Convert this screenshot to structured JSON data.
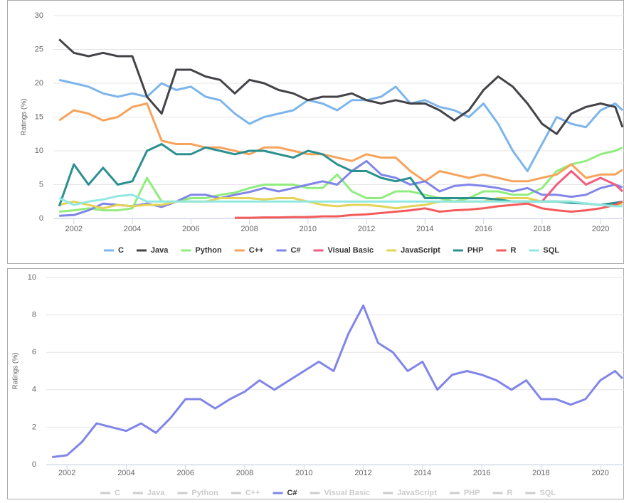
{
  "chart_data": [
    {
      "type": "line",
      "y_label": "Ratings (%)",
      "x": [
        2001.5,
        2002,
        2002.5,
        2003,
        2003.5,
        2004,
        2004.5,
        2005,
        2005.5,
        2006,
        2006.5,
        2007,
        2007.5,
        2008,
        2008.5,
        2009,
        2009.5,
        2010,
        2010.5,
        2011,
        2011.5,
        2012,
        2012.5,
        2013,
        2013.5,
        2014,
        2014.5,
        2015,
        2015.5,
        2016,
        2016.5,
        2017,
        2017.5,
        2018,
        2018.5,
        2019,
        2019.5,
        2020,
        2020.5,
        2020.75
      ],
      "xlim": [
        2001.3,
        2020.8
      ],
      "xticks": [
        2002,
        2004,
        2006,
        2008,
        2010,
        2012,
        2014,
        2016,
        2018,
        2020
      ],
      "ylim": [
        0,
        30
      ],
      "yticks": [
        0,
        5,
        10,
        15,
        20,
        25,
        30
      ],
      "grid": true,
      "series": [
        {
          "name": "C",
          "color": "#7cb5ec",
          "values": [
            20.5,
            20,
            19.5,
            18.5,
            18,
            18.5,
            18,
            20,
            19,
            19.5,
            18,
            17.5,
            15.5,
            14,
            15,
            15.5,
            16,
            17.5,
            17,
            16,
            17.5,
            17.5,
            18,
            19.5,
            17,
            17.5,
            16.5,
            16,
            15,
            17,
            14,
            10,
            7,
            11,
            15,
            14,
            13.5,
            16,
            17,
            16
          ]
        },
        {
          "name": "Java",
          "color": "#434348",
          "values": [
            26.5,
            24.5,
            24,
            24.5,
            24,
            24,
            18,
            15.5,
            22,
            22,
            21,
            20.5,
            18.5,
            20.5,
            20,
            19,
            18.5,
            17.5,
            18,
            18,
            18.5,
            17.5,
            17,
            17.5,
            17,
            17,
            16,
            14.5,
            16,
            19,
            21,
            19.5,
            17,
            14,
            12.5,
            15.5,
            16.5,
            17,
            16.5,
            13.5
          ]
        },
        {
          "name": "Python",
          "color": "#90ed7d",
          "values": [
            1,
            1.2,
            1.5,
            1.2,
            1.2,
            1.5,
            6,
            2.5,
            2.5,
            3,
            3,
            3.5,
            3.8,
            4.5,
            5,
            5,
            5,
            4.5,
            4.5,
            6.5,
            4,
            3,
            3,
            4,
            4,
            3.5,
            3,
            2.5,
            3,
            4,
            4,
            3.5,
            3.5,
            4.5,
            7,
            8,
            8.5,
            9.5,
            10,
            10.5
          ]
        },
        {
          "name": "C++",
          "color": "#f7a35c",
          "values": [
            14.5,
            16,
            15.5,
            14.5,
            15,
            16.5,
            17,
            11.5,
            11,
            11,
            10.5,
            10.5,
            10,
            9.5,
            10.5,
            10.5,
            10,
            9.5,
            9.5,
            9,
            8.5,
            9.5,
            9,
            9,
            7,
            5.5,
            7,
            6.5,
            6,
            6.5,
            6,
            5.5,
            5.5,
            6,
            6.5,
            8,
            6,
            6.5,
            6.5,
            7.2
          ]
        },
        {
          "name": "C#",
          "color": "#8085e9",
          "values": [
            0.4,
            0.5,
            1.2,
            2.2,
            2,
            1.8,
            2.2,
            1.7,
            2.5,
            3.5,
            3.5,
            3,
            3.5,
            3.9,
            4.5,
            4,
            4.5,
            5,
            5.5,
            5,
            7,
            8.5,
            6.5,
            6,
            5,
            5.5,
            4,
            4.8,
            5,
            4.8,
            4.5,
            4,
            4.5,
            3.5,
            3.5,
            3.2,
            3.5,
            4.5,
            5,
            4.6
          ]
        },
        {
          "name": "Visual Basic",
          "color": "#f15c80",
          "values": [
            null,
            null,
            null,
            null,
            null,
            null,
            null,
            null,
            null,
            null,
            null,
            null,
            null,
            null,
            null,
            null,
            null,
            null,
            null,
            null,
            null,
            null,
            null,
            null,
            null,
            null,
            null,
            null,
            null,
            null,
            null,
            null,
            null,
            2.5,
            5,
            7,
            5,
            6,
            5,
            4
          ]
        },
        {
          "name": "JavaScript",
          "color": "#e4d354",
          "values": [
            2,
            2.5,
            2,
            1.5,
            2,
            1.8,
            2,
            2,
            2.5,
            2.5,
            2.5,
            3,
            3,
            3,
            2.8,
            3,
            3,
            2.5,
            2,
            1.8,
            2,
            2,
            1.8,
            1.5,
            1.8,
            2,
            2.5,
            2.5,
            2.5,
            2.5,
            3,
            3,
            3,
            2.5,
            2.5,
            2.5,
            2.2,
            2,
            2,
            2.2
          ]
        },
        {
          "name": "PHP",
          "color": "#2b908f",
          "values": [
            1.8,
            8,
            5,
            7.5,
            5,
            5.5,
            10,
            11,
            9.5,
            9.5,
            10.5,
            10,
            9.5,
            10,
            10,
            9.5,
            9,
            10,
            9.5,
            8,
            7,
            7,
            6,
            5.5,
            6,
            3,
            3,
            3,
            3,
            3,
            2.8,
            2.5,
            2.5,
            2.5,
            2.5,
            2.3,
            2.2,
            2,
            2.3,
            2.5
          ]
        },
        {
          "name": "R",
          "color": "#f45b5b",
          "values": [
            null,
            null,
            null,
            null,
            null,
            null,
            null,
            null,
            null,
            null,
            null,
            null,
            0.1,
            0.1,
            0.15,
            0.15,
            0.2,
            0.2,
            0.3,
            0.3,
            0.5,
            0.6,
            0.8,
            1,
            1.2,
            1.5,
            1,
            1.2,
            1.3,
            1.5,
            1.8,
            2,
            2.2,
            1.5,
            1.2,
            1,
            1.2,
            1.5,
            2,
            2.5
          ]
        },
        {
          "name": "SQL",
          "color": "#91e8e1",
          "values": [
            3,
            2,
            2.5,
            2.8,
            3.3,
            3.5,
            2.5,
            2.5,
            2.5,
            2.5,
            2.5,
            2.5,
            2.5,
            2.5,
            2.5,
            2.5,
            2.5,
            2.5,
            2.5,
            2.5,
            2.5,
            2.5,
            2.5,
            2.5,
            2.5,
            2.5,
            2.5,
            2.5,
            2.5,
            2.5,
            2.5,
            2.5,
            2.5,
            2.5,
            2.5,
            2.5,
            2.2,
            2,
            1.8,
            1.8
          ]
        }
      ]
    },
    {
      "type": "line",
      "y_label": "Ratings (%)",
      "x": [
        2001.5,
        2002,
        2002.5,
        2003,
        2003.5,
        2004,
        2004.5,
        2005,
        2005.5,
        2006,
        2006.5,
        2007,
        2007.5,
        2008,
        2008.5,
        2009,
        2009.5,
        2010,
        2010.5,
        2011,
        2011.5,
        2012,
        2012.5,
        2013,
        2013.5,
        2014,
        2014.5,
        2015,
        2015.5,
        2016,
        2016.5,
        2017,
        2017.5,
        2018,
        2018.5,
        2019,
        2019.5,
        2020,
        2020.5,
        2020.75
      ],
      "xlim": [
        2001.3,
        2020.8
      ],
      "xticks": [
        2002,
        2004,
        2006,
        2008,
        2010,
        2012,
        2014,
        2016,
        2018,
        2020
      ],
      "ylim": [
        0,
        10
      ],
      "yticks": [
        0,
        2,
        4,
        6,
        8,
        10
      ],
      "grid": true,
      "series": [
        {
          "name": "C",
          "color": "#7cb5ec",
          "visible": false
        },
        {
          "name": "Java",
          "color": "#434348",
          "visible": false
        },
        {
          "name": "Python",
          "color": "#90ed7d",
          "visible": false
        },
        {
          "name": "C++",
          "color": "#f7a35c",
          "visible": false
        },
        {
          "name": "C#",
          "color": "#8085e9",
          "visible": true,
          "values": [
            0.4,
            0.5,
            1.2,
            2.2,
            2,
            1.8,
            2.2,
            1.7,
            2.5,
            3.5,
            3.5,
            3,
            3.5,
            3.9,
            4.5,
            4,
            4.5,
            5,
            5.5,
            5,
            7,
            8.5,
            6.5,
            6,
            5,
            5.5,
            4,
            4.8,
            5,
            4.8,
            4.5,
            4,
            4.5,
            3.5,
            3.5,
            3.2,
            3.5,
            4.5,
            5,
            4.6
          ]
        },
        {
          "name": "Visual Basic",
          "color": "#f15c80",
          "visible": false
        },
        {
          "name": "JavaScript",
          "color": "#e4d354",
          "visible": false
        },
        {
          "name": "PHP",
          "color": "#2b908f",
          "visible": false
        },
        {
          "name": "R",
          "color": "#f45b5b",
          "visible": false
        },
        {
          "name": "SQL",
          "color": "#91e8e1",
          "visible": false
        }
      ]
    }
  ]
}
